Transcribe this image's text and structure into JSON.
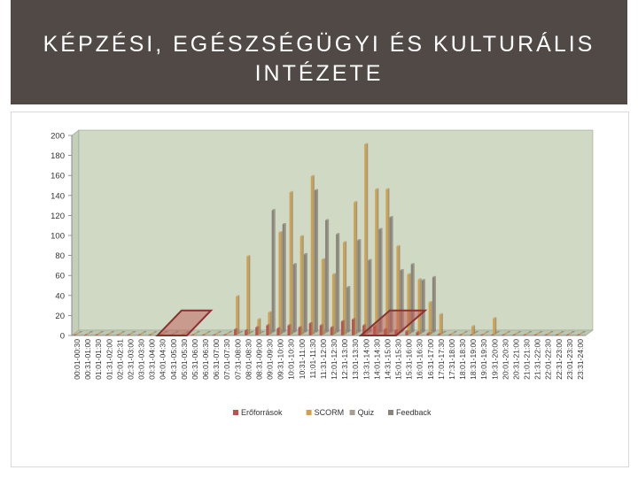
{
  "header": {
    "title": "KÉPZÉSI, EGÉSZSÉGÜGYI ÉS KULTURÁLIS INTÉZETE"
  },
  "colors": {
    "header_bg": "#514945",
    "plot_bg": "#cfd9c4",
    "eroforrasok": "#c0504d",
    "scorm": "#d4a04a",
    "quiz": "#a6a08f",
    "feedback": "#8a847a",
    "highlight": "#c0504d"
  },
  "chart_data": {
    "type": "bar",
    "categories": [
      "00:01-00:30",
      "00:31-01:00",
      "01:01-01:30",
      "01:31-02:00",
      "02:01-02:31",
      "02:31-03:00",
      "03:01-03:30",
      "03:31-04:00",
      "04:01-04:30",
      "04:31-05:00",
      "05:01-05:30",
      "05:31-06:00",
      "06:01-06:30",
      "06:31-07:00",
      "07:01-07:30",
      "07:31-08:00",
      "08:01-08:30",
      "08:31-09:00",
      "09:01-09:30",
      "09:31-10:00",
      "10:01-10:30",
      "10:31-11:00",
      "11:01-11:30",
      "11:31-12:00",
      "12:01-12:30",
      "12:31-13:00",
      "13:01-13:30",
      "13:31-14:00",
      "14:01-14:30",
      "14:31-15:00",
      "15:01-15:30",
      "15:31-16:00",
      "16:01-16:30",
      "16:31-17:00",
      "17:01-17:30",
      "17:31-18:00",
      "18:01-18:30",
      "18:31-19:00",
      "19:01-19:30",
      "19:31-20:00",
      "20:01-20:30",
      "20:31-21:00",
      "21:01-21:30",
      "21:31-22:00",
      "22:01-22:30",
      "22:31-23:00",
      "23:01-23:30",
      "23:31-24:00"
    ],
    "series": [
      {
        "name": "Erőforrások",
        "values": [
          0,
          0,
          0,
          0,
          0,
          0,
          0,
          0,
          0,
          0,
          0,
          0,
          0,
          0,
          0,
          6,
          5,
          8,
          10,
          7,
          10,
          8,
          12,
          10,
          8,
          14,
          16,
          10,
          9,
          6,
          5,
          4,
          3,
          2,
          1,
          0,
          0,
          0,
          0,
          0,
          0,
          0,
          0,
          0,
          0,
          0,
          0,
          0
        ]
      },
      {
        "name": "SCORM",
        "values": [
          0,
          0,
          0,
          0,
          0,
          0,
          0,
          0,
          0,
          0,
          0,
          0,
          0,
          0,
          0,
          38,
          78,
          15,
          22,
          102,
          142,
          98,
          158,
          75,
          60,
          92,
          132,
          190,
          145,
          145,
          88,
          60,
          55,
          32,
          20,
          0,
          0,
          8,
          0,
          16,
          0,
          0,
          0,
          0,
          0,
          0,
          0,
          0
        ]
      },
      {
        "name": "Quiz",
        "values": [
          0,
          0,
          0,
          0,
          0,
          0,
          0,
          0,
          0,
          0,
          0,
          0,
          0,
          0,
          0,
          0,
          0,
          0,
          0,
          0,
          0,
          0,
          0,
          0,
          0,
          0,
          0,
          0,
          0,
          0,
          0,
          0,
          0,
          0,
          0,
          0,
          0,
          0,
          0,
          0,
          0,
          0,
          0,
          0,
          0,
          0,
          0,
          0
        ]
      },
      {
        "name": "Feedback",
        "values": [
          0,
          0,
          0,
          0,
          0,
          0,
          0,
          0,
          0,
          0,
          0,
          0,
          0,
          0,
          0,
          0,
          0,
          0,
          122,
          108,
          68,
          78,
          142,
          112,
          98,
          45,
          92,
          72,
          103,
          115,
          62,
          68,
          52,
          55,
          0,
          0,
          0,
          0,
          0,
          0,
          0,
          0,
          0,
          0,
          0,
          0,
          0,
          0
        ]
      }
    ],
    "ylim": [
      0,
      200
    ],
    "yticks": [
      0,
      20,
      40,
      60,
      80,
      100,
      120,
      140,
      160,
      180,
      200
    ],
    "grid": false,
    "legend": "bottom",
    "highlights": [
      {
        "from_category": "04:01-04:30",
        "to_category": "06:01-06:30"
      },
      {
        "from_category": "13:31-14:00",
        "to_category": "16:01-16:30"
      }
    ]
  }
}
